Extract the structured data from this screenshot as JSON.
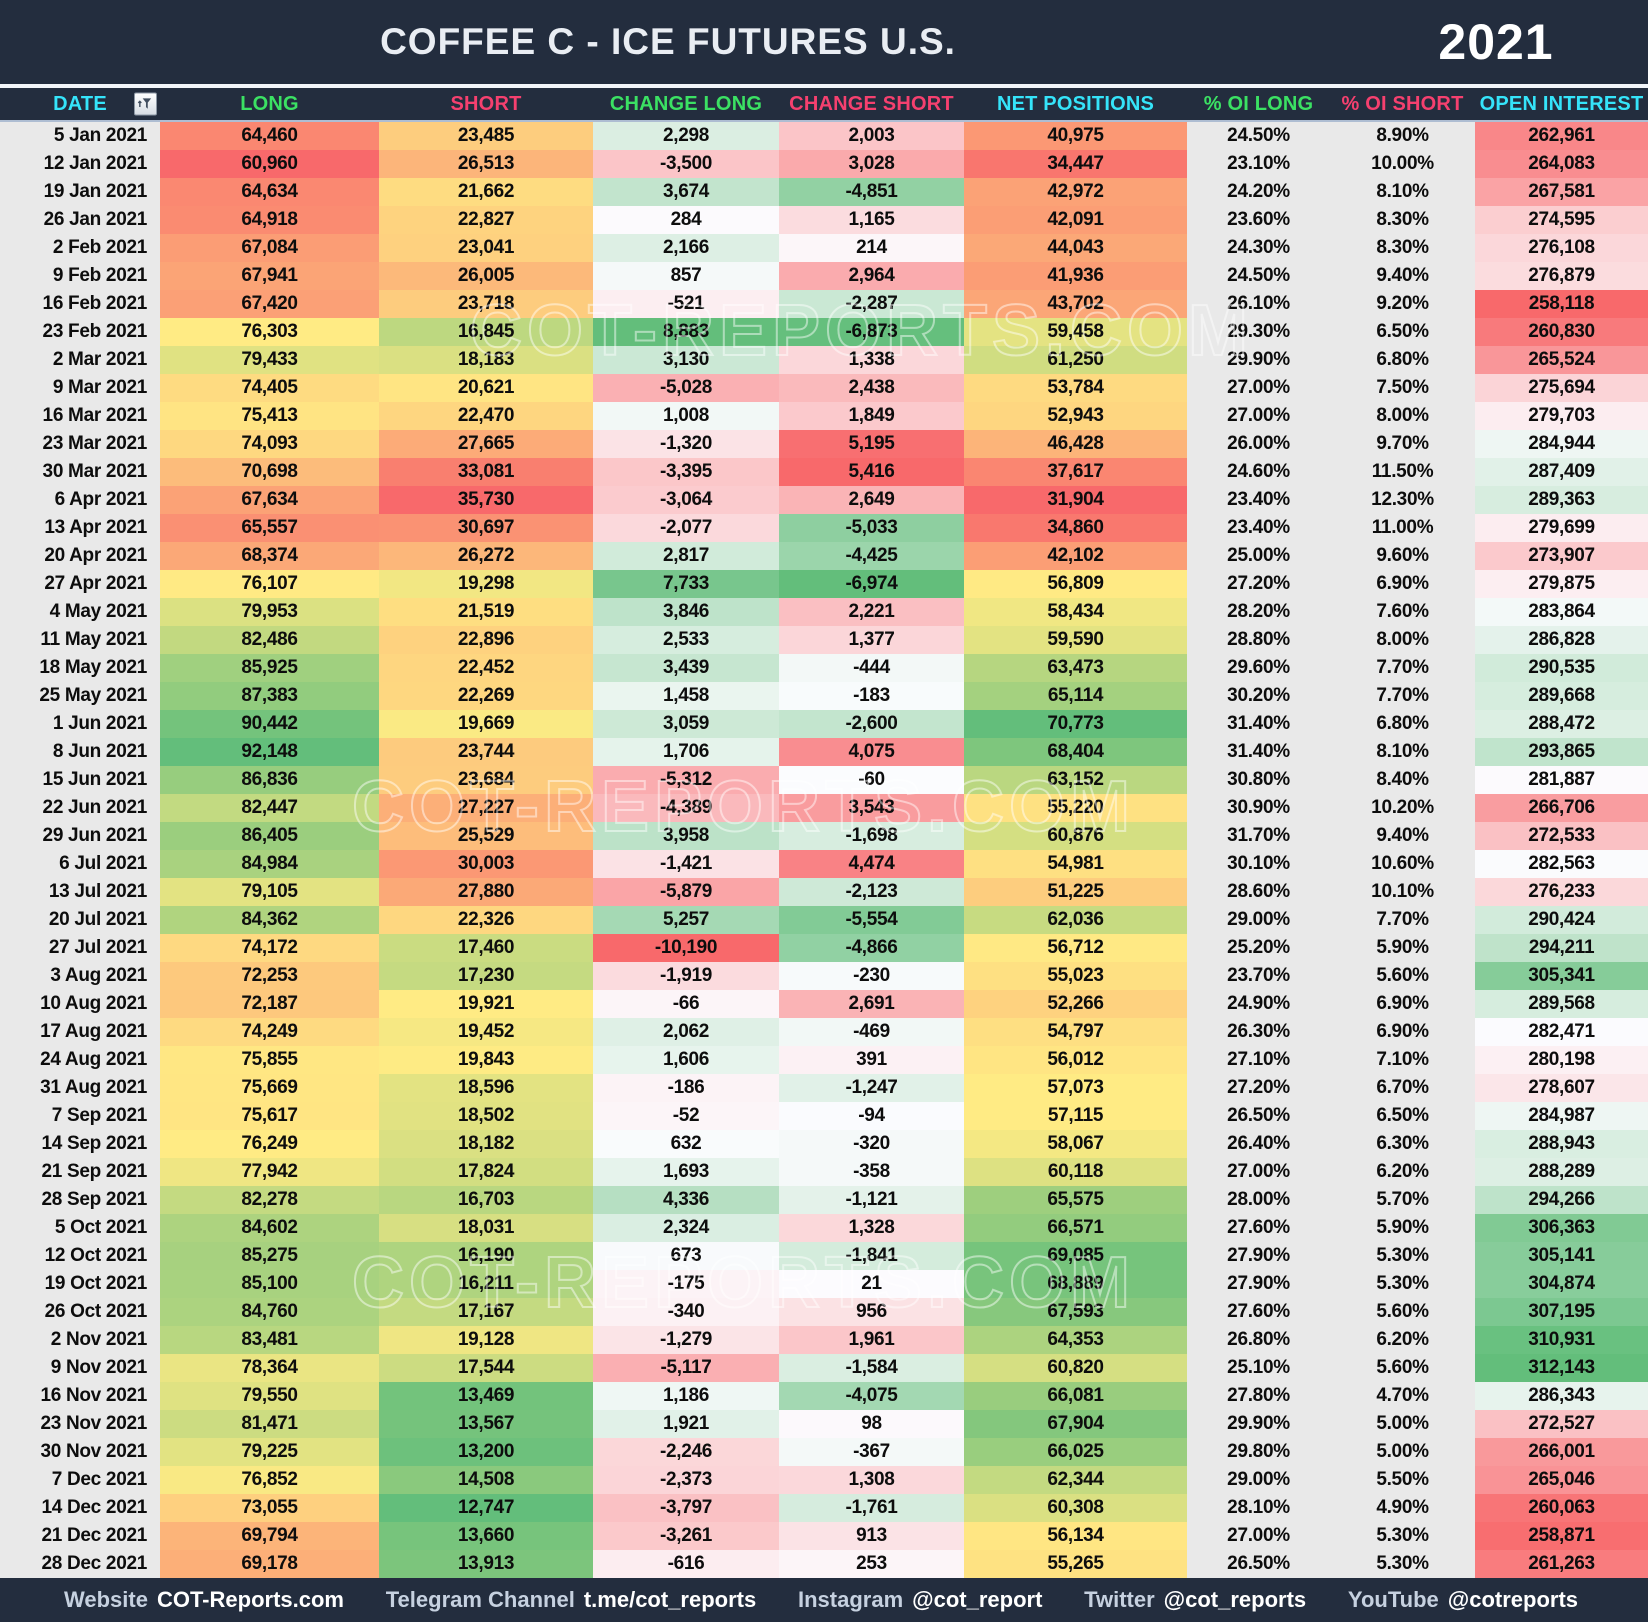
{
  "title": "COFFEE C - ICE FUTURES U.S.",
  "year": "2021",
  "watermark": "COT-REPORTS.COM",
  "colors": {
    "bar_background": "#232d3e",
    "gray_cell": "#e9e9e9",
    "header_cyan": "#35e4fa",
    "header_green": "#3be163",
    "header_pink": "#f5406f",
    "scale_red": "#F8696B",
    "scale_yellow": "#FFEB84",
    "scale_green": "#63BE7B",
    "scale_white": "#FCFCFF"
  },
  "columns": [
    {
      "key": "date",
      "label": "DATE",
      "header_color": "cyan",
      "type": "date"
    },
    {
      "key": "long",
      "label": "LONG",
      "header_color": "green",
      "type": "number",
      "scale": "ryg",
      "invert": false
    },
    {
      "key": "short",
      "label": "SHORT",
      "header_color": "pink",
      "type": "number",
      "scale": "ryg",
      "invert": true
    },
    {
      "key": "change_long",
      "label": "CHANGE LONG",
      "header_color": "green",
      "type": "number",
      "scale": "rwg",
      "invert": false
    },
    {
      "key": "change_short",
      "label": "CHANGE SHORT",
      "header_color": "pink",
      "type": "number",
      "scale": "rwg",
      "invert": true
    },
    {
      "key": "net_positions",
      "label": "NET POSITIONS",
      "header_color": "cyan",
      "type": "number",
      "scale": "ryg",
      "invert": false
    },
    {
      "key": "pct_oi_long",
      "label": "% OI LONG",
      "header_color": "green",
      "type": "percent"
    },
    {
      "key": "pct_oi_short",
      "label": "% OI SHORT",
      "header_color": "pink",
      "type": "percent"
    },
    {
      "key": "open_interest",
      "label": "OPEN INTEREST",
      "header_color": "cyan",
      "type": "number",
      "scale": "rwg",
      "invert": false
    }
  ],
  "rows": [
    [
      "5 Jan 2021",
      64460,
      23485,
      2298,
      2003,
      40975,
      24.5,
      8.9,
      262961
    ],
    [
      "12 Jan 2021",
      60960,
      26513,
      -3500,
      3028,
      34447,
      23.1,
      10.0,
      264083
    ],
    [
      "19 Jan 2021",
      64634,
      21662,
      3674,
      -4851,
      42972,
      24.2,
      8.1,
      267581
    ],
    [
      "26 Jan 2021",
      64918,
      22827,
      284,
      1165,
      42091,
      23.6,
      8.3,
      274595
    ],
    [
      "2 Feb 2021",
      67084,
      23041,
      2166,
      214,
      44043,
      24.3,
      8.3,
      276108
    ],
    [
      "9 Feb 2021",
      67941,
      26005,
      857,
      2964,
      41936,
      24.5,
      9.4,
      276879
    ],
    [
      "16 Feb 2021",
      67420,
      23718,
      -521,
      -2287,
      43702,
      26.1,
      9.2,
      258118
    ],
    [
      "23 Feb 2021",
      76303,
      16845,
      8883,
      -6873,
      59458,
      29.3,
      6.5,
      260830
    ],
    [
      "2 Mar 2021",
      79433,
      18183,
      3130,
      1338,
      61250,
      29.9,
      6.8,
      265524
    ],
    [
      "9 Mar 2021",
      74405,
      20621,
      -5028,
      2438,
      53784,
      27.0,
      7.5,
      275694
    ],
    [
      "16 Mar 2021",
      75413,
      22470,
      1008,
      1849,
      52943,
      27.0,
      8.0,
      279703
    ],
    [
      "23 Mar 2021",
      74093,
      27665,
      -1320,
      5195,
      46428,
      26.0,
      9.7,
      284944
    ],
    [
      "30 Mar 2021",
      70698,
      33081,
      -3395,
      5416,
      37617,
      24.6,
      11.5,
      287409
    ],
    [
      "6 Apr 2021",
      67634,
      35730,
      -3064,
      2649,
      31904,
      23.4,
      12.3,
      289363
    ],
    [
      "13 Apr 2021",
      65557,
      30697,
      -2077,
      -5033,
      34860,
      23.4,
      11.0,
      279699
    ],
    [
      "20 Apr 2021",
      68374,
      26272,
      2817,
      -4425,
      42102,
      25.0,
      9.6,
      273907
    ],
    [
      "27 Apr 2021",
      76107,
      19298,
      7733,
      -6974,
      56809,
      27.2,
      6.9,
      279875
    ],
    [
      "4 May 2021",
      79953,
      21519,
      3846,
      2221,
      58434,
      28.2,
      7.6,
      283864
    ],
    [
      "11 May 2021",
      82486,
      22896,
      2533,
      1377,
      59590,
      28.8,
      8.0,
      286828
    ],
    [
      "18 May 2021",
      85925,
      22452,
      3439,
      -444,
      63473,
      29.6,
      7.7,
      290535
    ],
    [
      "25 May 2021",
      87383,
      22269,
      1458,
      -183,
      65114,
      30.2,
      7.7,
      289668
    ],
    [
      "1 Jun 2021",
      90442,
      19669,
      3059,
      -2600,
      70773,
      31.4,
      6.8,
      288472
    ],
    [
      "8 Jun 2021",
      92148,
      23744,
      1706,
      4075,
      68404,
      31.4,
      8.1,
      293865
    ],
    [
      "15 Jun 2021",
      86836,
      23684,
      -5312,
      -60,
      63152,
      30.8,
      8.4,
      281887
    ],
    [
      "22 Jun 2021",
      82447,
      27227,
      -4389,
      3543,
      55220,
      30.9,
      10.2,
      266706
    ],
    [
      "29 Jun 2021",
      86405,
      25529,
      3958,
      -1698,
      60876,
      31.7,
      9.4,
      272533
    ],
    [
      "6 Jul 2021",
      84984,
      30003,
      -1421,
      4474,
      54981,
      30.1,
      10.6,
      282563
    ],
    [
      "13 Jul 2021",
      79105,
      27880,
      -5879,
      -2123,
      51225,
      28.6,
      10.1,
      276233
    ],
    [
      "20 Jul 2021",
      84362,
      22326,
      5257,
      -5554,
      62036,
      29.0,
      7.7,
      290424
    ],
    [
      "27 Jul 2021",
      74172,
      17460,
      -10190,
      -4866,
      56712,
      25.2,
      5.9,
      294211
    ],
    [
      "3 Aug 2021",
      72253,
      17230,
      -1919,
      -230,
      55023,
      23.7,
      5.6,
      305341
    ],
    [
      "10 Aug 2021",
      72187,
      19921,
      -66,
      2691,
      52266,
      24.9,
      6.9,
      289568
    ],
    [
      "17 Aug 2021",
      74249,
      19452,
      2062,
      -469,
      54797,
      26.3,
      6.9,
      282471
    ],
    [
      "24 Aug 2021",
      75855,
      19843,
      1606,
      391,
      56012,
      27.1,
      7.1,
      280198
    ],
    [
      "31 Aug 2021",
      75669,
      18596,
      -186,
      -1247,
      57073,
      27.2,
      6.7,
      278607
    ],
    [
      "7 Sep 2021",
      75617,
      18502,
      -52,
      -94,
      57115,
      26.5,
      6.5,
      284987
    ],
    [
      "14 Sep 2021",
      76249,
      18182,
      632,
      -320,
      58067,
      26.4,
      6.3,
      288943
    ],
    [
      "21 Sep 2021",
      77942,
      17824,
      1693,
      -358,
      60118,
      27.0,
      6.2,
      288289
    ],
    [
      "28 Sep 2021",
      82278,
      16703,
      4336,
      -1121,
      65575,
      28.0,
      5.7,
      294266
    ],
    [
      "5 Oct 2021",
      84602,
      18031,
      2324,
      1328,
      66571,
      27.6,
      5.9,
      306363
    ],
    [
      "12 Oct 2021",
      85275,
      16190,
      673,
      -1841,
      69085,
      27.9,
      5.3,
      305141
    ],
    [
      "19 Oct 2021",
      85100,
      16211,
      -175,
      21,
      68889,
      27.9,
      5.3,
      304874
    ],
    [
      "26 Oct 2021",
      84760,
      17167,
      -340,
      956,
      67593,
      27.6,
      5.6,
      307195
    ],
    [
      "2 Nov 2021",
      83481,
      19128,
      -1279,
      1961,
      64353,
      26.8,
      6.2,
      310931
    ],
    [
      "9 Nov 2021",
      78364,
      17544,
      -5117,
      -1584,
      60820,
      25.1,
      5.6,
      312143
    ],
    [
      "16 Nov 2021",
      79550,
      13469,
      1186,
      -4075,
      66081,
      27.8,
      4.7,
      286343
    ],
    [
      "23 Nov 2021",
      81471,
      13567,
      1921,
      98,
      67904,
      29.9,
      5.0,
      272527
    ],
    [
      "30 Nov 2021",
      79225,
      13200,
      -2246,
      -367,
      66025,
      29.8,
      5.0,
      266001
    ],
    [
      "7 Dec 2021",
      76852,
      14508,
      -2373,
      1308,
      62344,
      29.0,
      5.5,
      265046
    ],
    [
      "14 Dec 2021",
      73055,
      12747,
      -3797,
      -1761,
      60308,
      28.1,
      4.9,
      260063
    ],
    [
      "21 Dec 2021",
      69794,
      13660,
      -3261,
      913,
      56134,
      27.0,
      5.3,
      258871
    ],
    [
      "28 Dec 2021",
      69178,
      13913,
      -616,
      253,
      55265,
      26.5,
      5.3,
      261263
    ]
  ],
  "footer": [
    {
      "label": "Website",
      "value": "COT-Reports.com"
    },
    {
      "label": "Telegram Channel",
      "value": "t.me/cot_reports"
    },
    {
      "label": "Instagram",
      "value": "@cot_report"
    },
    {
      "label": "Twitter",
      "value": "@cot_reports"
    },
    {
      "label": "YouTube",
      "value": "@cotreports"
    }
  ]
}
